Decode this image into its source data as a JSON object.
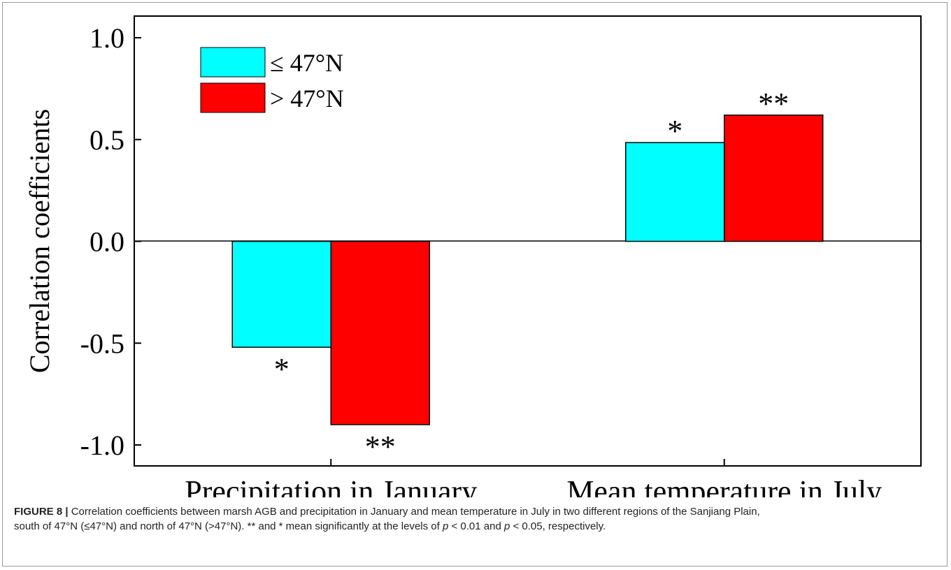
{
  "chart_data": {
    "type": "bar",
    "categories": [
      "Precipitation in January",
      "Mean temperature in July"
    ],
    "series": [
      {
        "name": "≤ 47°N",
        "color": "#00ffff",
        "values": [
          -0.52,
          0.485
        ],
        "significance": [
          "*",
          "*"
        ]
      },
      {
        "name": "> 47°N",
        "color": "#ff0000",
        "values": [
          -0.9,
          0.62
        ],
        "significance": [
          "**",
          "**"
        ]
      }
    ],
    "ylabel": "Correlation coefficients",
    "xlabel": "",
    "ylim": [
      -1.1,
      1.1
    ],
    "yticks": [
      1.0,
      0.5,
      0.0,
      -0.5,
      -1.0
    ],
    "ytick_labels": [
      "1.0",
      "0.5",
      "0.0",
      "-0.5",
      "-1.0"
    ],
    "legend_position": "top-left",
    "grid": false,
    "zero_line": true
  },
  "caption": {
    "label": "FIGURE 8 |",
    "text": "Correlation coefficients between marsh AGB and precipitation in January and mean temperature in July in two different regions of the Sanjiang Plain,",
    "line2_a": "south of 47°N (≤47°N) and north of 47°N (>47°N). ** and * mean significantly at the levels of ",
    "p1": "p",
    "line2_b": " < 0.01 and ",
    "p2": "p",
    "line2_c": " < 0.05, respectively."
  }
}
